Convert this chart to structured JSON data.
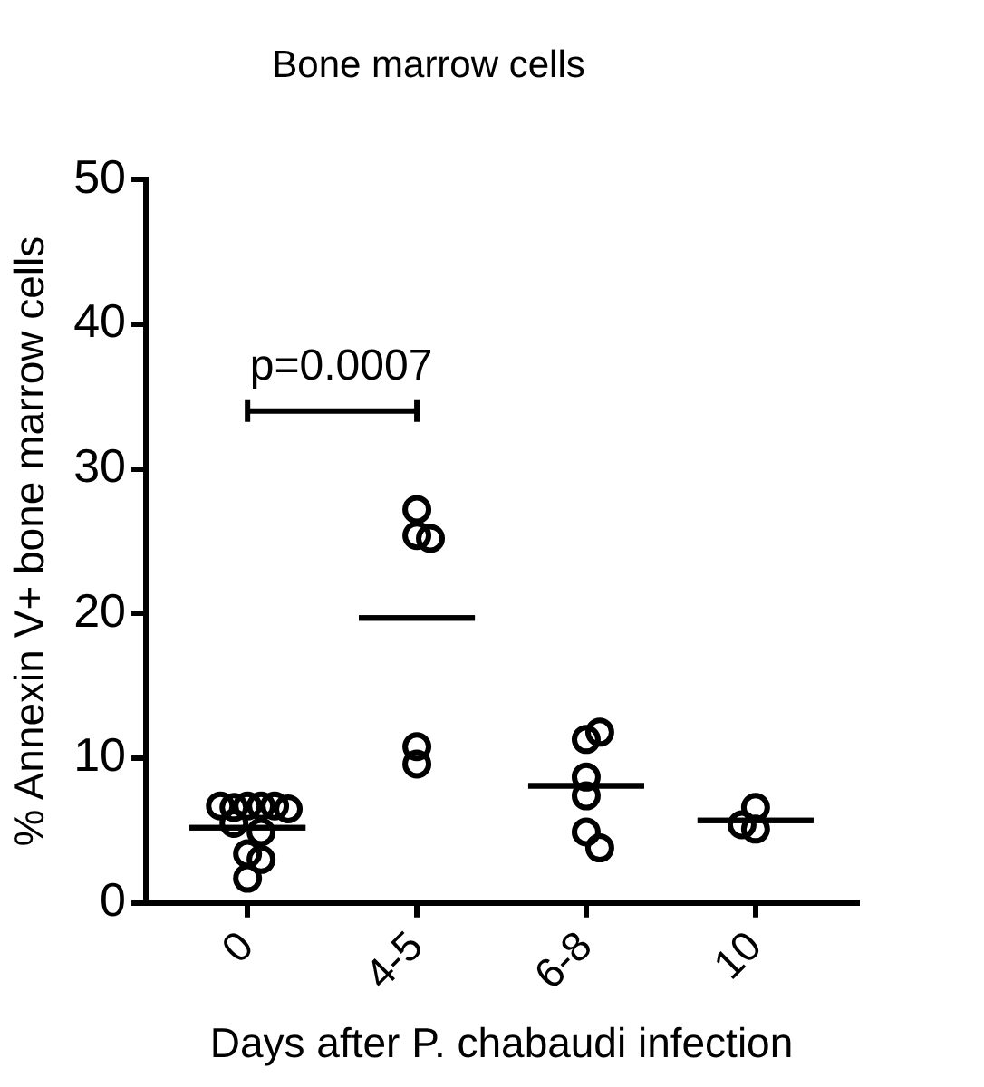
{
  "chart_data": {
    "type": "scatter",
    "title": "Bone marrow cells",
    "xlabel": "Days after P. chabaudi infection",
    "ylabel": "% Annexin V+ bone marrow cells",
    "categories": [
      "0",
      "4-5",
      "6-8",
      "10"
    ],
    "ylim": [
      0,
      50
    ],
    "yticks": [
      0,
      10,
      20,
      30,
      40,
      50
    ],
    "grid": false,
    "legend": false,
    "marker": "circle",
    "series": [
      {
        "type": "scatter",
        "color": "#000000",
        "x": [
          "0",
          "0",
          "0",
          "0",
          "0",
          "0",
          "0",
          "0",
          "0",
          "0",
          "0",
          "4-5",
          "4-5",
          "4-5",
          "4-5",
          "4-5",
          "6-8",
          "6-8",
          "6-8",
          "6-8",
          "6-8",
          "6-8",
          "10",
          "10",
          "10"
        ],
        "values": [
          6.7,
          6.7,
          6.6,
          6.7,
          6.7,
          6.5,
          5.5,
          4.9,
          3.4,
          3.0,
          1.7,
          25.4,
          25.2,
          27.2,
          9.6,
          10.8,
          11.3,
          11.8,
          8.7,
          7.4,
          4.9,
          3.8,
          6.6,
          5.1,
          5.4
        ]
      },
      {
        "type": "box",
        "color": "#000000",
        "boxes": [
          {
            "low": 5.2,
            "q1": 5.2,
            "median": 5.2,
            "q3": 5.2,
            "high": 5.2
          },
          {
            "low": 19.7,
            "q1": 19.7,
            "median": 19.7,
            "q3": 19.7,
            "high": 19.7
          },
          {
            "low": 8.1,
            "q1": 8.1,
            "median": 8.1,
            "q3": 8.1,
            "high": 8.1
          },
          {
            "low": 5.7,
            "q1": 5.7,
            "median": 5.7,
            "q3": 5.7,
            "high": 5.7
          }
        ]
      }
    ],
    "annotations": [
      "p=0.0007"
    ]
  }
}
